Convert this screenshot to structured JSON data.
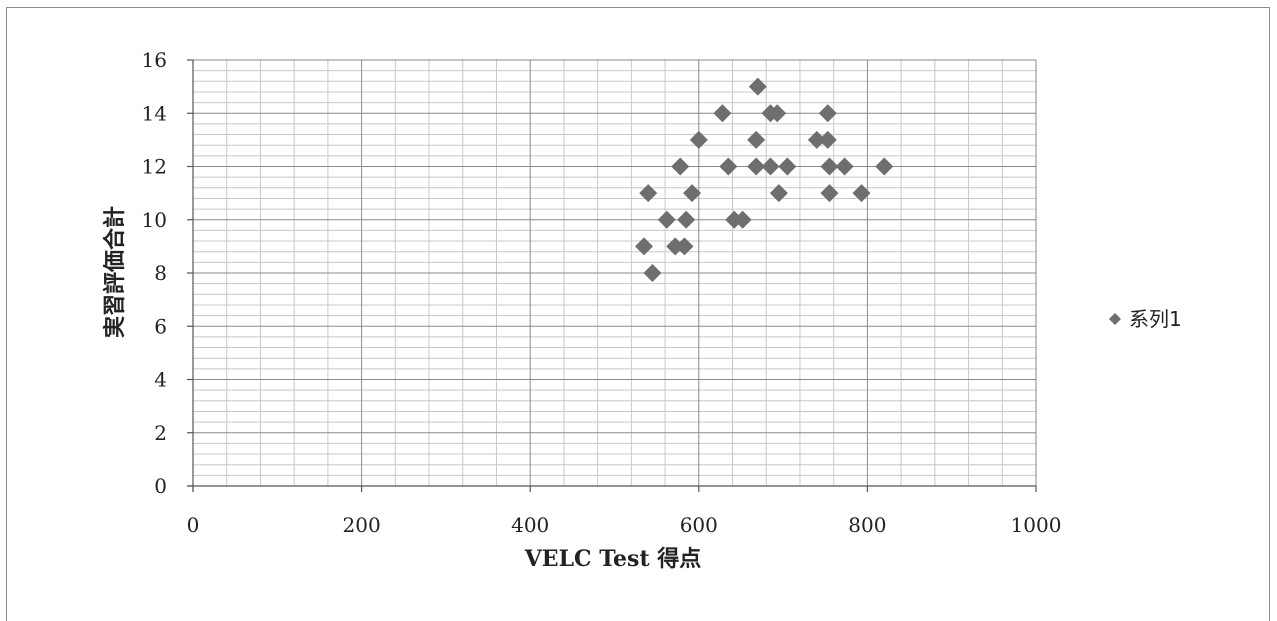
{
  "chart_data": {
    "type": "scatter",
    "xlabel": "VELC Test 得点",
    "ylabel": "実習評価合計",
    "xlim": [
      0,
      1000
    ],
    "ylim": [
      0,
      16
    ],
    "x_ticks": [
      "0",
      "200",
      "400",
      "600",
      "800",
      "1000"
    ],
    "y_ticks": [
      "0",
      "2",
      "4",
      "6",
      "8",
      "10",
      "12",
      "14",
      "16"
    ],
    "grid": true,
    "legend_position": "right",
    "marker": "diamond",
    "marker_color": "#6e6e6e",
    "series": [
      {
        "name": "系列1",
        "points": [
          [
            535,
            9
          ],
          [
            540,
            11
          ],
          [
            545,
            8
          ],
          [
            562,
            10
          ],
          [
            572,
            9
          ],
          [
            578,
            12
          ],
          [
            583,
            9
          ],
          [
            585,
            10
          ],
          [
            592,
            11
          ],
          [
            600,
            13
          ],
          [
            628,
            14
          ],
          [
            635,
            12
          ],
          [
            642,
            10
          ],
          [
            652,
            10
          ],
          [
            668,
            12
          ],
          [
            668,
            13
          ],
          [
            670,
            15
          ],
          [
            685,
            14
          ],
          [
            685,
            12
          ],
          [
            693,
            14
          ],
          [
            695,
            11
          ],
          [
            705,
            12
          ],
          [
            740,
            13
          ],
          [
            753,
            14
          ],
          [
            753,
            13
          ],
          [
            755,
            11
          ],
          [
            755,
            12
          ],
          [
            773,
            12
          ],
          [
            793,
            11
          ],
          [
            820,
            12
          ]
        ]
      }
    ]
  }
}
